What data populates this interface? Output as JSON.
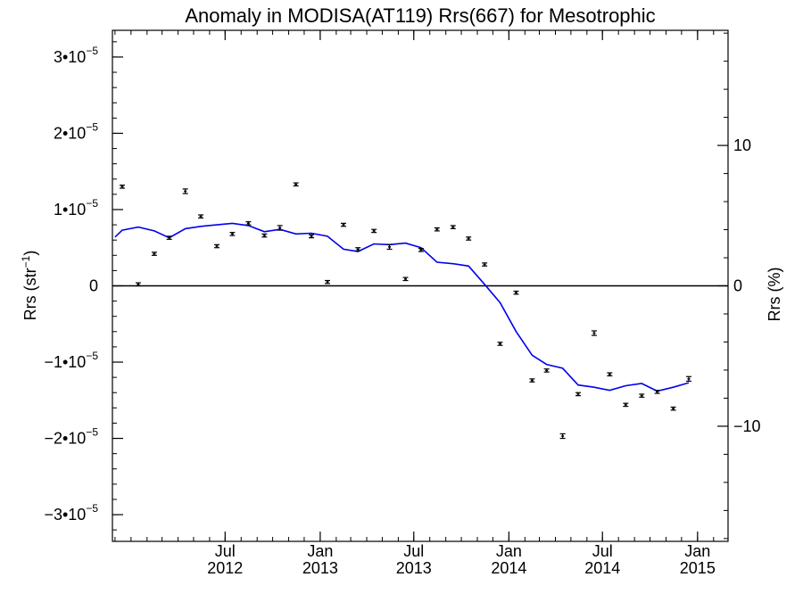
{
  "chart_data": {
    "type": "scatter",
    "title": "Anomaly in MODISA(AT119) Rrs(667) for Mesotrophic",
    "ylabel": "Rrs (str",
    "ylabel_sup": "−1",
    "ylabel_close": ")",
    "ylabel_right": "Rrs (%)",
    "ylim": [
      -3.35e-05,
      3.35e-05
    ],
    "ylim_right": [
      -18.2,
      18.2
    ],
    "xlim": [
      "2011-11-26",
      "2015-03-01"
    ],
    "grid": false,
    "zero_line": true,
    "y_ticks": [
      {
        "value": 3e-05,
        "mant": "3•10",
        "exp": "−5"
      },
      {
        "value": 2e-05,
        "mant": "2•10",
        "exp": "−5"
      },
      {
        "value": 1e-05,
        "mant": "1•10",
        "exp": "−5"
      },
      {
        "value": 0,
        "mant": "0",
        "exp": ""
      },
      {
        "value": -1e-05,
        "mant": "−1•10",
        "exp": "−5"
      },
      {
        "value": -2e-05,
        "mant": "−2•10",
        "exp": "−5"
      },
      {
        "value": -3e-05,
        "mant": "−3•10",
        "exp": "−5"
      }
    ],
    "y_ticks_right": [
      {
        "value": 10,
        "label": "10"
      },
      {
        "value": 0,
        "label": "0"
      },
      {
        "value": -10,
        "label": "−10"
      }
    ],
    "x_ticks": [
      {
        "date": "2012-07-01",
        "month": "Jul",
        "year": "2012"
      },
      {
        "date": "2013-01-01",
        "month": "Jan",
        "year": "2013"
      },
      {
        "date": "2013-07-01",
        "month": "Jul",
        "year": "2013"
      },
      {
        "date": "2014-01-01",
        "month": "Jan",
        "year": "2014"
      },
      {
        "date": "2014-07-01",
        "month": "Jul",
        "year": "2014"
      },
      {
        "date": "2015-01-01",
        "month": "Jan",
        "year": "2015"
      }
    ],
    "points": [
      {
        "date": "2011-12-15",
        "y": 1.3e-05,
        "err": 2e-07
      },
      {
        "date": "2012-01-15",
        "y": 2e-07,
        "err": 2e-07
      },
      {
        "date": "2012-02-15",
        "y": 4.2e-06,
        "err": 2e-07
      },
      {
        "date": "2012-03-15",
        "y": 6.3e-06,
        "err": 2e-07
      },
      {
        "date": "2012-04-15",
        "y": 1.24e-05,
        "err": 3e-07
      },
      {
        "date": "2012-05-15",
        "y": 9.1e-06,
        "err": 2e-07
      },
      {
        "date": "2012-06-15",
        "y": 5.2e-06,
        "err": 2e-07
      },
      {
        "date": "2012-07-15",
        "y": 6.8e-06,
        "err": 2e-07
      },
      {
        "date": "2012-08-15",
        "y": 8.2e-06,
        "err": 2e-07
      },
      {
        "date": "2012-09-15",
        "y": 6.6e-06,
        "err": 2e-07
      },
      {
        "date": "2012-10-15",
        "y": 7.6e-06,
        "err": 3e-07
      },
      {
        "date": "2012-11-15",
        "y": 1.33e-05,
        "err": 2e-07
      },
      {
        "date": "2012-12-15",
        "y": 6.5e-06,
        "err": 2e-07
      },
      {
        "date": "2013-01-15",
        "y": 5e-07,
        "err": 2e-07
      },
      {
        "date": "2013-02-15",
        "y": 8e-06,
        "err": 2e-07
      },
      {
        "date": "2013-03-15",
        "y": 4.8e-06,
        "err": 2e-07
      },
      {
        "date": "2013-04-15",
        "y": 7.2e-06,
        "err": 2e-07
      },
      {
        "date": "2013-05-15",
        "y": 5.1e-06,
        "err": 3e-07
      },
      {
        "date": "2013-06-15",
        "y": 9e-07,
        "err": 2e-07
      },
      {
        "date": "2013-07-15",
        "y": 4.7e-06,
        "err": 2e-07
      },
      {
        "date": "2013-08-15",
        "y": 7.4e-06,
        "err": 2e-07
      },
      {
        "date": "2013-09-15",
        "y": 7.7e-06,
        "err": 2e-07
      },
      {
        "date": "2013-10-15",
        "y": 6.2e-06,
        "err": 2e-07
      },
      {
        "date": "2013-11-15",
        "y": 2.8e-06,
        "err": 2e-07
      },
      {
        "date": "2013-12-15",
        "y": -7.6e-06,
        "err": 2e-07
      },
      {
        "date": "2014-01-15",
        "y": -9e-07,
        "err": 2e-07
      },
      {
        "date": "2014-02-15",
        "y": -1.24e-05,
        "err": 2e-07
      },
      {
        "date": "2014-03-15",
        "y": -1.11e-05,
        "err": 2e-07
      },
      {
        "date": "2014-04-15",
        "y": -1.97e-05,
        "err": 3e-07
      },
      {
        "date": "2014-05-15",
        "y": -1.42e-05,
        "err": 2e-07
      },
      {
        "date": "2014-06-15",
        "y": -6.2e-06,
        "err": 3e-07
      },
      {
        "date": "2014-07-15",
        "y": -1.16e-05,
        "err": 2e-07
      },
      {
        "date": "2014-08-15",
        "y": -1.56e-05,
        "err": 2e-07
      },
      {
        "date": "2014-09-15",
        "y": -1.44e-05,
        "err": 2e-07
      },
      {
        "date": "2014-10-15",
        "y": -1.39e-05,
        "err": 2e-07
      },
      {
        "date": "2014-11-15",
        "y": -1.61e-05,
        "err": 2e-07
      },
      {
        "date": "2014-12-15",
        "y": -1.22e-05,
        "err": 3e-07
      }
    ],
    "line": {
      "color": "#0000ee",
      "points": [
        {
          "date": "2011-12-01",
          "y": 6.4e-06
        },
        {
          "date": "2011-12-15",
          "y": 7.3e-06
        },
        {
          "date": "2012-01-15",
          "y": 7.7e-06
        },
        {
          "date": "2012-02-15",
          "y": 7.2e-06
        },
        {
          "date": "2012-03-15",
          "y": 6.3e-06
        },
        {
          "date": "2012-04-15",
          "y": 7.5e-06
        },
        {
          "date": "2012-05-15",
          "y": 7.8e-06
        },
        {
          "date": "2012-06-15",
          "y": 8e-06
        },
        {
          "date": "2012-07-15",
          "y": 8.2e-06
        },
        {
          "date": "2012-08-15",
          "y": 7.9e-06
        },
        {
          "date": "2012-09-15",
          "y": 7.1e-06
        },
        {
          "date": "2012-10-15",
          "y": 7.4e-06
        },
        {
          "date": "2012-11-15",
          "y": 6.8e-06
        },
        {
          "date": "2012-12-15",
          "y": 6.9e-06
        },
        {
          "date": "2013-01-15",
          "y": 6.5e-06
        },
        {
          "date": "2013-02-15",
          "y": 4.8e-06
        },
        {
          "date": "2013-03-15",
          "y": 4.5e-06
        },
        {
          "date": "2013-04-15",
          "y": 5.5e-06
        },
        {
          "date": "2013-05-15",
          "y": 5.4e-06
        },
        {
          "date": "2013-06-15",
          "y": 5.6e-06
        },
        {
          "date": "2013-07-15",
          "y": 5e-06
        },
        {
          "date": "2013-08-15",
          "y": 3.1e-06
        },
        {
          "date": "2013-09-15",
          "y": 2.9e-06
        },
        {
          "date": "2013-10-15",
          "y": 2.6e-06
        },
        {
          "date": "2013-11-15",
          "y": 2e-07
        },
        {
          "date": "2013-12-15",
          "y": -2.2e-06
        },
        {
          "date": "2014-01-15",
          "y": -6e-06
        },
        {
          "date": "2014-02-15",
          "y": -9.1e-06
        },
        {
          "date": "2014-03-15",
          "y": -1.03e-05
        },
        {
          "date": "2014-04-15",
          "y": -1.08e-05
        },
        {
          "date": "2014-05-15",
          "y": -1.3e-05
        },
        {
          "date": "2014-06-15",
          "y": -1.33e-05
        },
        {
          "date": "2014-07-15",
          "y": -1.37e-05
        },
        {
          "date": "2014-08-15",
          "y": -1.31e-05
        },
        {
          "date": "2014-09-15",
          "y": -1.28e-05
        },
        {
          "date": "2014-10-15",
          "y": -1.38e-05
        },
        {
          "date": "2014-11-15",
          "y": -1.33e-05
        },
        {
          "date": "2014-12-15",
          "y": -1.27e-05
        }
      ]
    }
  }
}
